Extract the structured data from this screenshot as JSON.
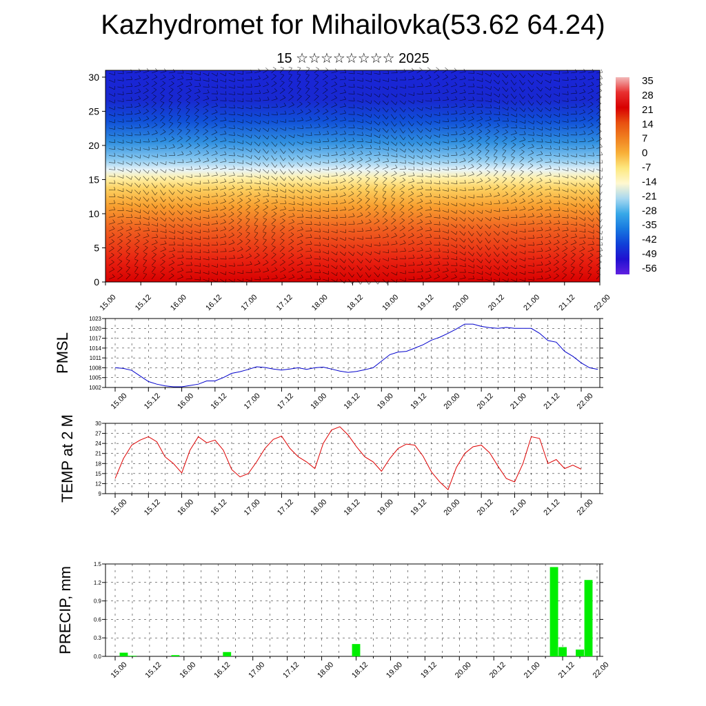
{
  "header": {
    "title": "Kazhydromet for Mihailovka(53.62 64.24)",
    "subtitle": "15 ☆☆☆☆☆☆☆☆ 2025"
  },
  "chart_data": [
    {
      "type": "heatmap",
      "name": "temperature-height cross-section with wind barbs",
      "y_ticks": [
        0,
        5,
        10,
        15,
        20,
        25,
        30
      ],
      "ylim": [
        0,
        31
      ],
      "x_ticks": [
        "15.00",
        "15.12",
        "16.00",
        "16.12",
        "17.00",
        "17.12",
        "18.00",
        "18.12",
        "19.00",
        "19.12",
        "20.00",
        "20.12",
        "21.00",
        "21.12",
        "22.00"
      ],
      "colorbar_labels": [
        "35",
        "28",
        "21",
        "14",
        "7",
        "0",
        "-7",
        "-14",
        "-21",
        "-28",
        "-35",
        "-42",
        "-49",
        "-56"
      ],
      "colorbar_colors": [
        "#f2b8b8",
        "#e83030",
        "#d80000",
        "#e85010",
        "#f08020",
        "#f8b038",
        "#fde880",
        "#fff8d0",
        "#a8d8f0",
        "#38a8e8",
        "#1878e0",
        "#1040d8",
        "#2010d0",
        "#6020e0"
      ]
    },
    {
      "type": "line",
      "ylabel": "PMSL",
      "ylim": [
        1002,
        1023
      ],
      "y_ticks": [
        1002,
        1005,
        1008,
        1011,
        1014,
        1017,
        1020,
        1023
      ],
      "x_ticks": [
        "15.00",
        "15.12",
        "16.00",
        "16.12",
        "17.00",
        "17.12",
        "18.00",
        "18.12",
        "19.00",
        "19.12",
        "20.00",
        "20.12",
        "21.00",
        "21.12",
        "22.00"
      ],
      "color": "#0000cc",
      "values": [
        1008,
        1007.8,
        1007.2,
        1005.5,
        1003.8,
        1003,
        1002.5,
        1002.2,
        1002.2,
        1002.6,
        1003,
        1004,
        1004,
        1005,
        1006.3,
        1006.8,
        1007.5,
        1008.3,
        1008.1,
        1007.6,
        1007.3,
        1007.6,
        1008,
        1007.5,
        1008,
        1008.2,
        1007.6,
        1007,
        1006.6,
        1006.9,
        1007.4,
        1008,
        1010,
        1012,
        1012.8,
        1013,
        1014,
        1015,
        1016.4,
        1017.3,
        1018.5,
        1019.8,
        1021.3,
        1021.3,
        1020.6,
        1020.2,
        1020,
        1020.3,
        1020,
        1020,
        1020,
        1018.5,
        1016.3,
        1015.8,
        1013,
        1011.5,
        1009.5,
        1008,
        1007.5
      ]
    },
    {
      "type": "line",
      "ylabel": "TEMP at 2 M",
      "ylim": [
        9,
        30
      ],
      "y_ticks": [
        9,
        12,
        15,
        18,
        21,
        24,
        27,
        30
      ],
      "x_ticks": [
        "15.00",
        "15.12",
        "16.00",
        "16.12",
        "17.00",
        "17.12",
        "18.00",
        "18.12",
        "19.00",
        "19.12",
        "20.00",
        "20.12",
        "21.00",
        "21.12",
        "22.00"
      ],
      "color": "#dd0000",
      "values": [
        13.5,
        19.5,
        23.5,
        25,
        26,
        24.5,
        20,
        18,
        15.2,
        22,
        26,
        24.2,
        25,
        22,
        16.2,
        14,
        15,
        18.5,
        22.5,
        25.2,
        26.2,
        22.5,
        20,
        18.5,
        16.5,
        24,
        28,
        29,
        26.5,
        23,
        20,
        18.5,
        15.7,
        19.5,
        22.5,
        23.8,
        23.5,
        20.2,
        15.5,
        12.5,
        10.2,
        16.8,
        21,
        23,
        23.5,
        21.2,
        17.2,
        13.5,
        12.5,
        18,
        26,
        25.5,
        18,
        19.2,
        16.5,
        17.5,
        16.3
      ]
    },
    {
      "type": "bar",
      "ylabel": "PRECIP, mm",
      "ylim": [
        0,
        1.5
      ],
      "y_ticks": [
        "0.0",
        "0.3",
        "0.6",
        "0.9",
        "1.2",
        "1.5"
      ],
      "x_ticks": [
        "15.00",
        "15.12",
        "16.00",
        "16.12",
        "17.00",
        "17.12",
        "18.00",
        "18.12",
        "19.00",
        "19.12",
        "20.00",
        "20.12",
        "21.00",
        "21.12",
        "22.00"
      ],
      "color": "#00ee00",
      "bars": [
        {
          "x": "15.03",
          "value": 0.06
        },
        {
          "x": "15.06",
          "value": 0.01
        },
        {
          "x": "15.21",
          "value": 0.02
        },
        {
          "x": "16.15",
          "value": 0.07
        },
        {
          "x": "18.12",
          "value": 0.2
        },
        {
          "x": "21.09",
          "value": 1.45
        },
        {
          "x": "21.12",
          "value": 0.15
        },
        {
          "x": "21.18",
          "value": 0.11
        },
        {
          "x": "21.21",
          "value": 1.24
        }
      ]
    }
  ]
}
